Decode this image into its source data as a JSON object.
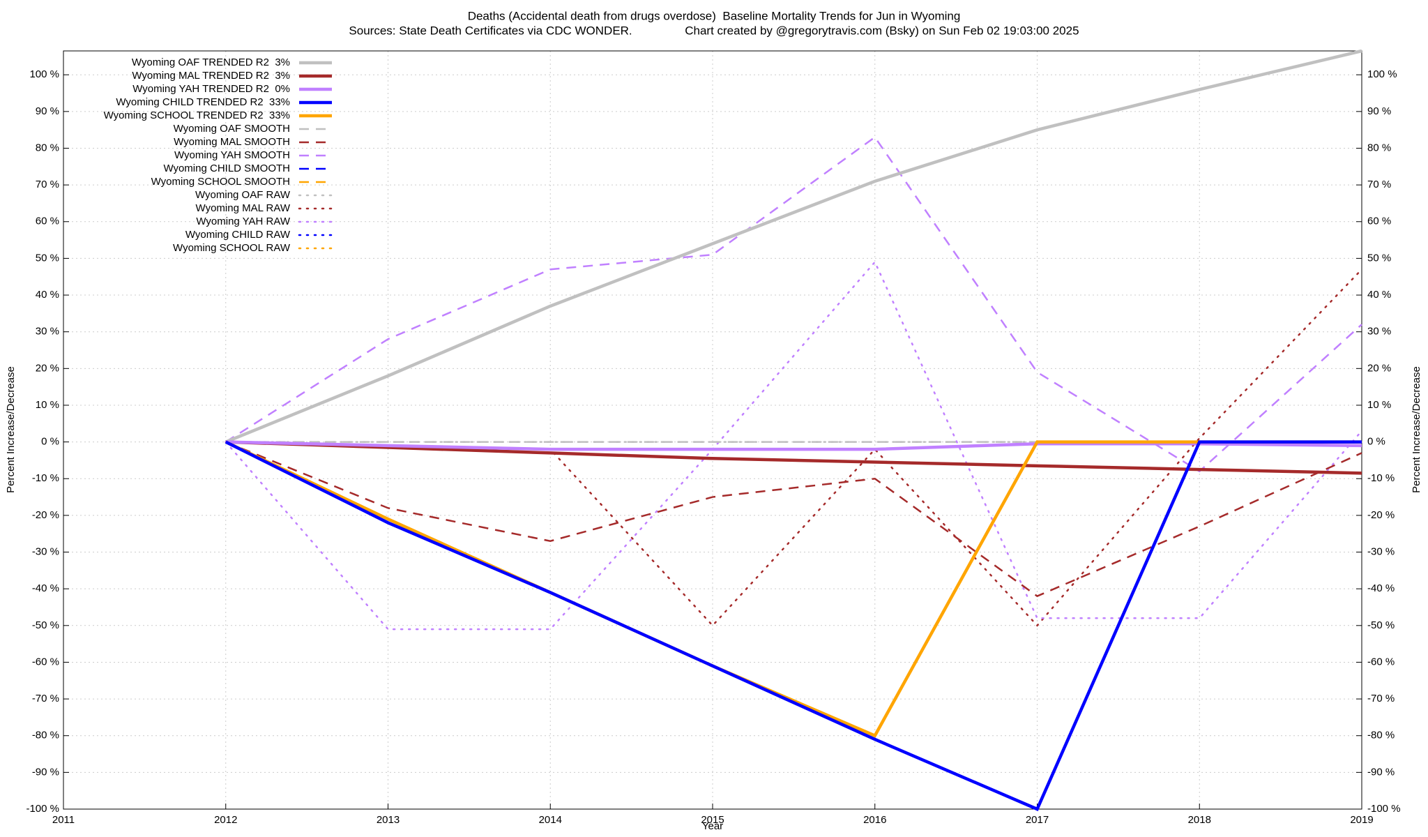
{
  "chart_data": {
    "type": "line",
    "title": "Deaths (Accidental death from drugs overdose)  Baseline Mortality Trends for Jun in Wyoming",
    "subtitle": "Sources: State Death Certificates via CDC WONDER.                Chart created by @gregorytravis.com (Bsky) on Sun Feb 02 19:03:00 2025",
    "xlabel": "Year",
    "ylabel": "Percent Increase/Decrease",
    "y2label": "Percent Increase/Decrease",
    "x": [
      2012,
      2013,
      2014,
      2015,
      2016,
      2017,
      2018,
      2019
    ],
    "xlim": [
      2011,
      2019
    ],
    "xticks": [
      2011,
      2012,
      2013,
      2014,
      2015,
      2016,
      2017,
      2018,
      2019
    ],
    "ylim": [
      -100,
      106.5
    ],
    "yticks": [
      {
        "value": -100,
        "label": "-100 %"
      },
      {
        "value": -90,
        "label": "-90 %"
      },
      {
        "value": -80,
        "label": "-80 %"
      },
      {
        "value": -70,
        "label": "-70 %"
      },
      {
        "value": -60,
        "label": "-60 %"
      },
      {
        "value": -50,
        "label": "-50 %"
      },
      {
        "value": -40,
        "label": "-40 %"
      },
      {
        "value": -30,
        "label": "-30 %"
      },
      {
        "value": -20,
        "label": "-20 %"
      },
      {
        "value": -10,
        "label": "-10 %"
      },
      {
        "value": 0,
        "label": "0 %"
      },
      {
        "value": 10,
        "label": "10 %"
      },
      {
        "value": 20,
        "label": "20 %"
      },
      {
        "value": 30,
        "label": "30 %"
      },
      {
        "value": 40,
        "label": "40 %"
      },
      {
        "value": 50,
        "label": "50 %"
      },
      {
        "value": 60,
        "label": "60 %"
      },
      {
        "value": 70,
        "label": "70 %"
      },
      {
        "value": 80,
        "label": "80 %"
      },
      {
        "value": 90,
        "label": "90 %"
      },
      {
        "value": 100,
        "label": "100 %"
      }
    ],
    "grid": true,
    "legend": "top-left",
    "series": [
      {
        "name": "Wyoming OAF TRENDED R2  3%",
        "color": "#c0c0c0",
        "style": "solid",
        "values": [
          0,
          18,
          37,
          54,
          71,
          85,
          96,
          106.5
        ]
      },
      {
        "name": "Wyoming MAL TRENDED R2  3%",
        "color": "#a52a2a",
        "style": "solid",
        "values": [
          0,
          -1.5,
          -3,
          -4.5,
          -5.5,
          -6.5,
          -7.5,
          -8.5
        ]
      },
      {
        "name": "Wyoming YAH TRENDED R2  0%",
        "color": "#c080ff",
        "style": "solid",
        "values": [
          0,
          -1,
          -2,
          -2,
          -2,
          -0.5,
          -0.5,
          -1
        ]
      },
      {
        "name": "Wyoming CHILD TRENDED R2  33%",
        "color": "#0000ff",
        "style": "solid",
        "values": [
          0,
          -22,
          -41,
          -61,
          -81,
          -100,
          0,
          0
        ]
      },
      {
        "name": "Wyoming SCHOOL TRENDED R2  33%",
        "color": "#ffa500",
        "style": "solid",
        "values": [
          0,
          -21,
          -41,
          -61,
          -80,
          0,
          0,
          0
        ]
      },
      {
        "name": "Wyoming OAF SMOOTH",
        "color": "#c0c0c0",
        "style": "dashed",
        "values": [
          0,
          0,
          0,
          0,
          0,
          0,
          0,
          0
        ]
      },
      {
        "name": "Wyoming MAL SMOOTH",
        "color": "#a52a2a",
        "style": "dashed",
        "values": [
          0,
          -18,
          -27,
          -15,
          -10,
          -42,
          -23,
          -3
        ]
      },
      {
        "name": "Wyoming YAH SMOOTH",
        "color": "#c080ff",
        "style": "dashed",
        "values": [
          0,
          28,
          47,
          51,
          83,
          19,
          -8,
          32
        ]
      },
      {
        "name": "Wyoming CHILD SMOOTH",
        "color": "#0000ff",
        "style": "dashed",
        "values": [
          null,
          null,
          null,
          null,
          null,
          null,
          null,
          null
        ]
      },
      {
        "name": "Wyoming SCHOOL SMOOTH",
        "color": "#ffa500",
        "style": "dashed",
        "values": [
          null,
          null,
          null,
          null,
          null,
          null,
          null,
          null
        ]
      },
      {
        "name": "Wyoming OAF RAW",
        "color": "#c0c0c0",
        "style": "dotted",
        "values": [
          0,
          0,
          0,
          0,
          0,
          0,
          0,
          0
        ]
      },
      {
        "name": "Wyoming MAL RAW",
        "color": "#a52a2a",
        "style": "dotted",
        "values": [
          0,
          -1,
          -2,
          -50,
          -2,
          -50,
          1,
          47
        ]
      },
      {
        "name": "Wyoming YAH RAW",
        "color": "#c080ff",
        "style": "dotted",
        "values": [
          0,
          -51,
          -51,
          -2,
          49,
          -48,
          -48,
          3
        ]
      },
      {
        "name": "Wyoming CHILD RAW",
        "color": "#0000ff",
        "style": "dotted",
        "values": [
          null,
          null,
          null,
          null,
          null,
          null,
          null,
          null
        ]
      },
      {
        "name": "Wyoming SCHOOL RAW",
        "color": "#ffa500",
        "style": "dotted",
        "values": [
          null,
          null,
          null,
          null,
          null,
          null,
          null,
          null
        ]
      }
    ]
  }
}
